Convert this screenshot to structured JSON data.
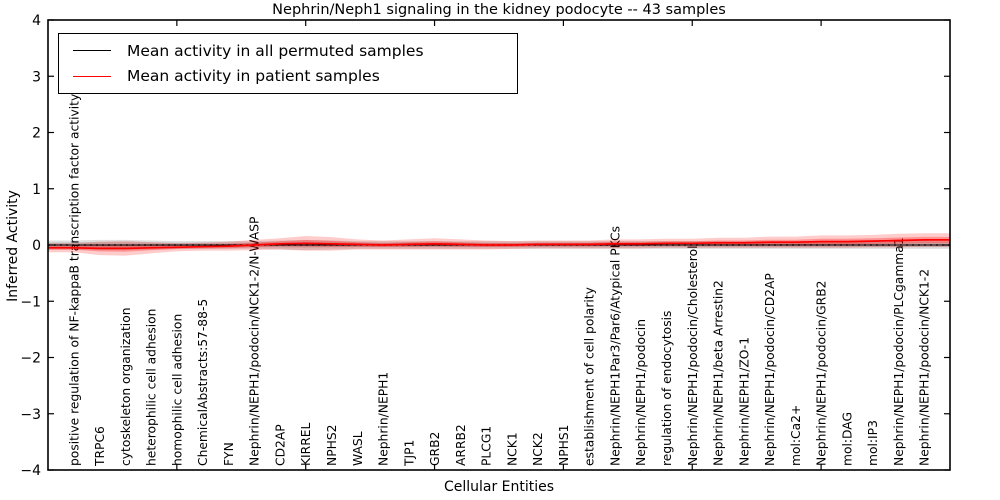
{
  "chart_data": {
    "type": "line",
    "title": "Nephrin/Neph1 signaling in the kidney podocyte -- 43 samples",
    "xlabel": "Cellular Entities",
    "ylabel": "Inferred Activity",
    "ylim": [
      -4,
      4
    ],
    "yticklabels": [
      "−4",
      "−3",
      "−2",
      "−1",
      "0",
      "1",
      "2",
      "3",
      "4"
    ],
    "yticks": [
      -4,
      -3,
      -2,
      -1,
      0,
      1,
      2,
      3,
      4
    ],
    "grid": false,
    "legend_position": "upper-left",
    "legend": [
      {
        "label": "Mean activity in all permuted samples",
        "color": "#000000"
      },
      {
        "label": "Mean activity in patient samples",
        "color": "#ff0000"
      }
    ],
    "categories": [
      "positive regulation of NF-kappaB transcription factor activity",
      "TRPC6",
      "cytoskeleton organization",
      "heterophilic cell adhesion",
      "homophilic cell adhesion",
      "ChemicalAbstracts:57-88-5",
      "FYN",
      "Nephrin/NEPH1/podocin/NCK1-2/N-WASP",
      "CD2AP",
      "KIRREL",
      "NPHS2",
      "WASL",
      "Nephrin/NEPH1",
      "TJP1",
      "GRB2",
      "ARRB2",
      "PLCG1",
      "NCK1",
      "NCK2",
      "NPHS1",
      "establishment of cell polarity",
      "Nephrin/NEPH1Par3/Par6/Atypical PKCs",
      "Nephrin/NEPH1/podocin",
      "regulation of endocytosis",
      "Nephrin/NEPH1/podocin/Cholesterol",
      "Nephrin/NEPH1/beta Arrestin2",
      "Nephrin/NEPH1/ZO-1",
      "Nephrin/NEPH1/podocin/CD2AP",
      "mol:Ca2+",
      "Nephrin/NEPH1/podocin/GRB2",
      "mol:DAG",
      "mol:IP3",
      "Nephrin/NEPH1/podocin/PLCgamma1",
      "Nephrin/NEPH1/podocin/NCK1-2"
    ],
    "series": [
      {
        "name": "Mean activity in all permuted samples",
        "color": "#000000",
        "values": [
          0,
          0,
          0,
          0,
          0,
          0,
          0,
          0,
          0,
          0,
          0,
          0,
          0,
          0,
          0,
          0,
          0,
          0,
          0,
          0,
          0,
          0,
          0,
          0,
          0,
          0,
          0,
          0,
          0,
          0,
          0,
          0,
          0,
          0
        ],
        "band_halfwidth": [
          0.08,
          0.09,
          0.09,
          0.08,
          0.07,
          0.07,
          0.07,
          0.07,
          0.08,
          0.09,
          0.08,
          0.07,
          0.07,
          0.07,
          0.07,
          0.07,
          0.07,
          0.07,
          0.07,
          0.07,
          0.07,
          0.07,
          0.07,
          0.07,
          0.07,
          0.07,
          0.07,
          0.07,
          0.07,
          0.07,
          0.07,
          0.07,
          0.07,
          0.07
        ]
      },
      {
        "name": "Mean activity in patient samples",
        "color": "#ff0000",
        "values": [
          -0.05,
          -0.06,
          -0.06,
          -0.05,
          -0.04,
          -0.03,
          -0.02,
          0.0,
          0.02,
          0.03,
          0.02,
          0.01,
          0.0,
          0.01,
          0.02,
          0.01,
          0.0,
          0.0,
          0.01,
          0.01,
          0.01,
          0.02,
          0.02,
          0.03,
          0.03,
          0.04,
          0.04,
          0.05,
          0.05,
          0.06,
          0.06,
          0.07,
          0.08,
          0.09
        ],
        "band_halfwidth": [
          0.08,
          0.12,
          0.13,
          0.1,
          0.07,
          0.07,
          0.08,
          0.09,
          0.1,
          0.13,
          0.12,
          0.09,
          0.08,
          0.09,
          0.1,
          0.09,
          0.08,
          0.07,
          0.07,
          0.07,
          0.07,
          0.08,
          0.08,
          0.08,
          0.08,
          0.09,
          0.09,
          0.1,
          0.1,
          0.11,
          0.11,
          0.11,
          0.12,
          0.12
        ]
      }
    ],
    "zero_line": {
      "style": "dotted",
      "color": "#000000",
      "y": 0
    }
  }
}
